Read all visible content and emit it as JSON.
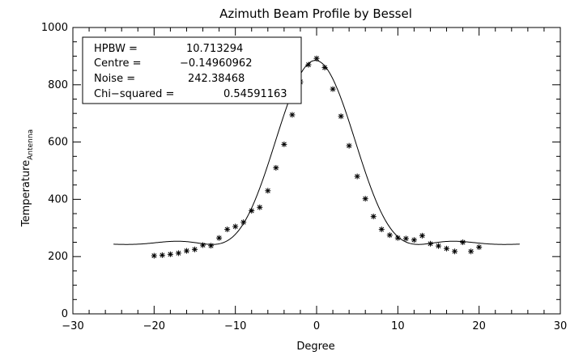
{
  "chart_data": {
    "type": "scatter",
    "title": "Azimuth Beam Profile by Bessel",
    "xlabel": "Degree",
    "ylabel_main": "Temperature",
    "ylabel_sub": "Antenna",
    "xlim": [
      -30,
      30
    ],
    "ylim": [
      0,
      1000
    ],
    "x_ticks": [
      -30,
      -20,
      -10,
      0,
      10,
      20,
      30
    ],
    "y_ticks": [
      0,
      200,
      400,
      600,
      800,
      1000
    ],
    "x_tick_labels": [
      "−30",
      "−20",
      "−10",
      "0",
      "10",
      "20",
      "30"
    ],
    "y_tick_labels": [
      "0",
      "200",
      "400",
      "600",
      "800",
      "1000"
    ],
    "grid": false,
    "annotation": {
      "rows": [
        {
          "label": "HPBW =",
          "value": "10.713294"
        },
        {
          "label": "Centre =",
          "value": "−0.14960962"
        },
        {
          "label": "Noise =",
          "value": "242.38468"
        },
        {
          "label": "Chi−squared =",
          "value": "0.54591163"
        }
      ]
    },
    "fit": {
      "x_range": [
        -25,
        25
      ],
      "centre": -0.15,
      "hpbw": 10.71,
      "baseline": 242.38,
      "peak": 885
    },
    "series": [
      {
        "marker": "asterisk",
        "x": [
          -20,
          -19,
          -18,
          -17,
          -16,
          -15,
          -14,
          -13,
          -12,
          -11,
          -10,
          -9,
          -8,
          -7,
          -6,
          -5,
          -4,
          -3,
          -2,
          -1,
          0,
          1,
          2,
          3,
          4,
          5,
          6,
          7,
          8,
          9,
          10,
          11,
          12,
          13,
          14,
          15,
          16,
          17,
          18,
          19,
          20
        ],
        "y": [
          203,
          205,
          208,
          212,
          220,
          225,
          240,
          238,
          265,
          295,
          305,
          320,
          360,
          372,
          430,
          510,
          592,
          695,
          810,
          870,
          892,
          860,
          785,
          690,
          587,
          480,
          402,
          340,
          295,
          275,
          265,
          263,
          258,
          273,
          245,
          237,
          228,
          218,
          250,
          218,
          233
        ]
      }
    ]
  }
}
